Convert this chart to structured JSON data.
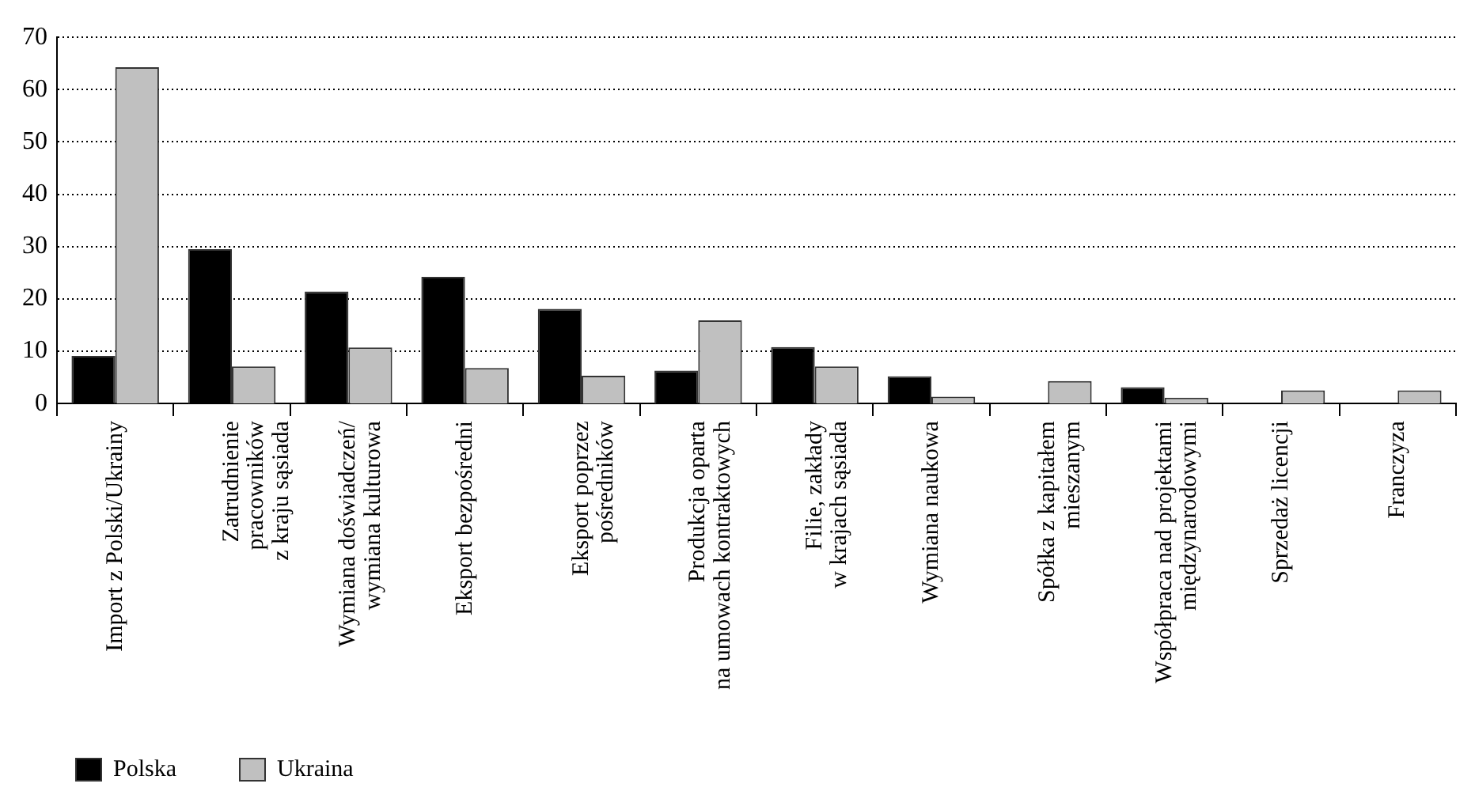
{
  "chart_data": {
    "type": "bar",
    "categories": [
      "Import z Polski/Ukrainy",
      "Zatrudnienie\npracowników\nz kraju sąsiada",
      "Wymiana doświadczeń/\nwymiana kulturowa",
      "Eksport bezpośredni",
      "Eksport poprzez\npośredników",
      "Produkcja oparta\nna umowach kontraktowych",
      "Filie, zakłady\nw krajach sąsiada",
      "Wymiana naukowa",
      "Spółka z kapitałem\nmieszanym",
      "Współpraca nad projektami\nmiędzynarodowymi",
      "Sprzedaż licencji",
      "Franczyza"
    ],
    "series": [
      {
        "name": "Polska",
        "color": "#000000",
        "values": [
          9.1,
          29.5,
          21.4,
          24.2,
          18.1,
          6.3,
          10.8,
          5.2,
          0,
          3.1,
          0,
          0
        ]
      },
      {
        "name": "Ukraina",
        "color": "#c0c0c0",
        "values": [
          64.3,
          7.1,
          10.7,
          6.8,
          5.3,
          15.9,
          7.1,
          1.3,
          4.3,
          1.1,
          2.5,
          2.5
        ]
      }
    ],
    "ylim": [
      0,
      70
    ],
    "yticks": [
      0,
      10,
      20,
      30,
      40,
      50,
      60,
      70
    ],
    "grid": "y",
    "legend": "bottom left"
  }
}
